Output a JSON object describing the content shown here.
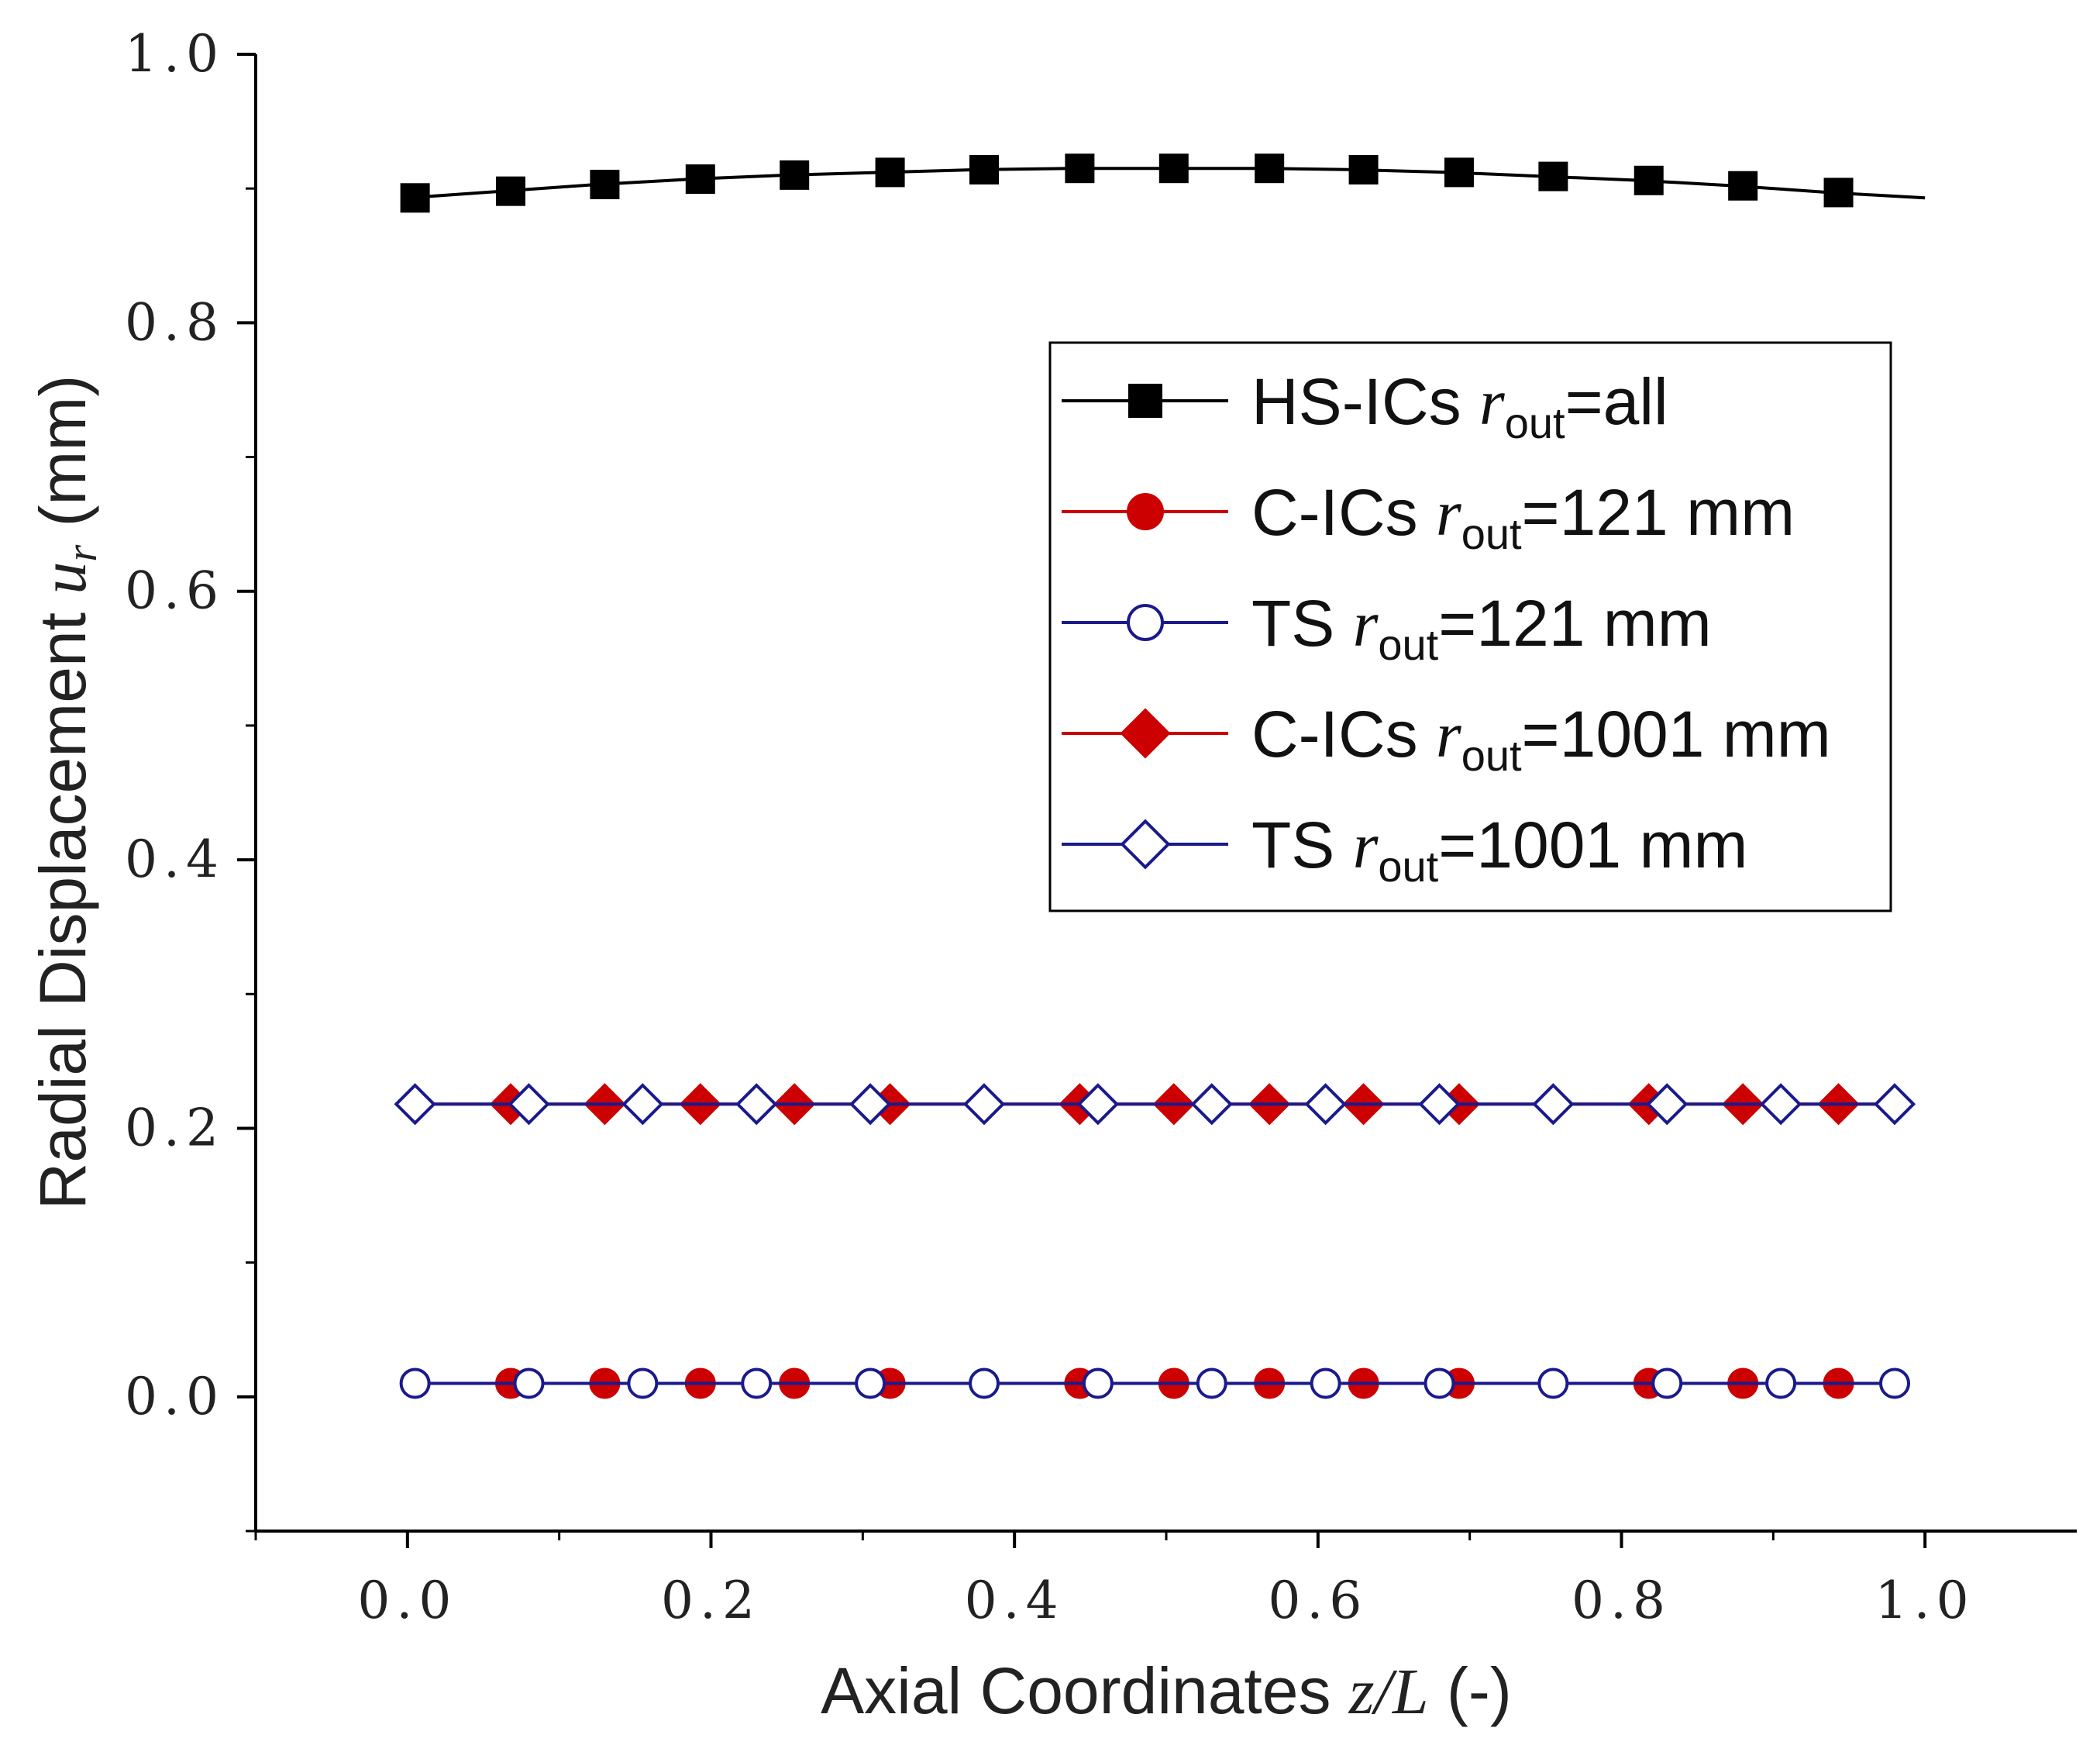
{
  "chart_data": {
    "type": "line",
    "title": "",
    "xlabel": {
      "pre": "Axial Coordinates ",
      "var": "z/L",
      "post": " (-)"
    },
    "ylabel": {
      "pre": "Radial Displacement ",
      "var": "u",
      "sub": "r",
      "post": " (mm)"
    },
    "xlim": [
      -0.1,
      1.1
    ],
    "ylim": [
      -0.1,
      1.0
    ],
    "x_ticks": [
      0.0,
      0.2,
      0.4,
      0.6,
      0.8,
      1.0
    ],
    "x_tick_labels": [
      "0.0",
      "0.2",
      "0.4",
      "0.6",
      "0.8",
      "1.0"
    ],
    "y_ticks": [
      0.0,
      0.2,
      0.4,
      0.6,
      0.8,
      1.0
    ],
    "y_tick_labels": [
      "0.0",
      "0.2",
      "0.4",
      "0.6",
      "0.8",
      "1.0"
    ],
    "legend_position": "upper-right",
    "series": [
      {
        "name": "HS-ICs r_out=all",
        "legend": {
          "pre": "HS-ICs ",
          "var": "r",
          "sub": "out",
          "post": "=all"
        },
        "color": "#000000",
        "marker": "square",
        "filled": true,
        "line_x": [
          0.0,
          0.0625,
          0.125,
          0.1875,
          0.25,
          0.3125,
          0.375,
          0.4375,
          0.5,
          0.5625,
          0.625,
          0.6875,
          0.75,
          0.8125,
          0.875,
          0.9375,
          1.0
        ],
        "line_y": [
          0.893,
          0.898,
          0.903,
          0.907,
          0.91,
          0.912,
          0.914,
          0.915,
          0.915,
          0.915,
          0.914,
          0.912,
          0.909,
          0.906,
          0.902,
          0.897,
          0.893
        ],
        "x": [
          0.005,
          0.068,
          0.13,
          0.193,
          0.255,
          0.318,
          0.38,
          0.443,
          0.505,
          0.568,
          0.63,
          0.693,
          0.755,
          0.818,
          0.88,
          0.943
        ],
        "y": [
          0.893,
          0.898,
          0.903,
          0.907,
          0.91,
          0.912,
          0.914,
          0.915,
          0.915,
          0.915,
          0.914,
          0.912,
          0.909,
          0.906,
          0.902,
          0.897
        ]
      },
      {
        "name": "C-ICs r_out=121 mm",
        "legend": {
          "pre": "C-ICs ",
          "var": "r",
          "sub": "out",
          "post": "=121 mm"
        },
        "color": "#cc0000",
        "marker": "circle",
        "filled": true,
        "line_x": [
          0.005,
          0.98
        ],
        "line_y": [
          0.01,
          0.01
        ],
        "x": [
          0.068,
          0.13,
          0.193,
          0.255,
          0.318,
          0.443,
          0.505,
          0.568,
          0.63,
          0.693,
          0.818,
          0.88,
          0.943
        ],
        "y": [
          0.01,
          0.01,
          0.01,
          0.01,
          0.01,
          0.01,
          0.01,
          0.01,
          0.01,
          0.01,
          0.01,
          0.01,
          0.01
        ]
      },
      {
        "name": "TS r_out=121 mm",
        "legend": {
          "pre": "TS ",
          "var": "r",
          "sub": "out",
          "post": "=121 mm"
        },
        "color": "#1a1a8c",
        "marker": "circle",
        "filled": false,
        "line_x": [
          0.005,
          0.98
        ],
        "line_y": [
          0.01,
          0.01
        ],
        "x": [
          0.005,
          0.08,
          0.155,
          0.23,
          0.305,
          0.38,
          0.455,
          0.53,
          0.605,
          0.68,
          0.755,
          0.83,
          0.905,
          0.98
        ],
        "y": [
          0.01,
          0.01,
          0.01,
          0.01,
          0.01,
          0.01,
          0.01,
          0.01,
          0.01,
          0.01,
          0.01,
          0.01,
          0.01,
          0.01
        ]
      },
      {
        "name": "C-ICs r_out=1001 mm",
        "legend": {
          "pre": "C-ICs ",
          "var": "r",
          "sub": "out",
          "post": "=1001 mm"
        },
        "color": "#cc0000",
        "marker": "diamond",
        "filled": true,
        "line_x": [
          0.005,
          0.98
        ],
        "line_y": [
          0.218,
          0.218
        ],
        "x": [
          0.068,
          0.13,
          0.193,
          0.255,
          0.318,
          0.443,
          0.505,
          0.568,
          0.63,
          0.693,
          0.818,
          0.88,
          0.943
        ],
        "y": [
          0.218,
          0.218,
          0.218,
          0.218,
          0.218,
          0.218,
          0.218,
          0.218,
          0.218,
          0.218,
          0.218,
          0.218,
          0.218
        ]
      },
      {
        "name": "TS r_out=1001 mm",
        "legend": {
          "pre": "TS ",
          "var": "r",
          "sub": "out",
          "post": "=1001 mm"
        },
        "color": "#1a1a8c",
        "marker": "diamond",
        "filled": false,
        "line_x": [
          0.005,
          0.98
        ],
        "line_y": [
          0.218,
          0.218
        ],
        "x": [
          0.005,
          0.08,
          0.155,
          0.23,
          0.305,
          0.38,
          0.455,
          0.53,
          0.605,
          0.68,
          0.755,
          0.83,
          0.905,
          0.98
        ],
        "y": [
          0.218,
          0.218,
          0.218,
          0.218,
          0.218,
          0.218,
          0.218,
          0.218,
          0.218,
          0.218,
          0.218,
          0.218,
          0.218,
          0.218
        ]
      }
    ]
  }
}
